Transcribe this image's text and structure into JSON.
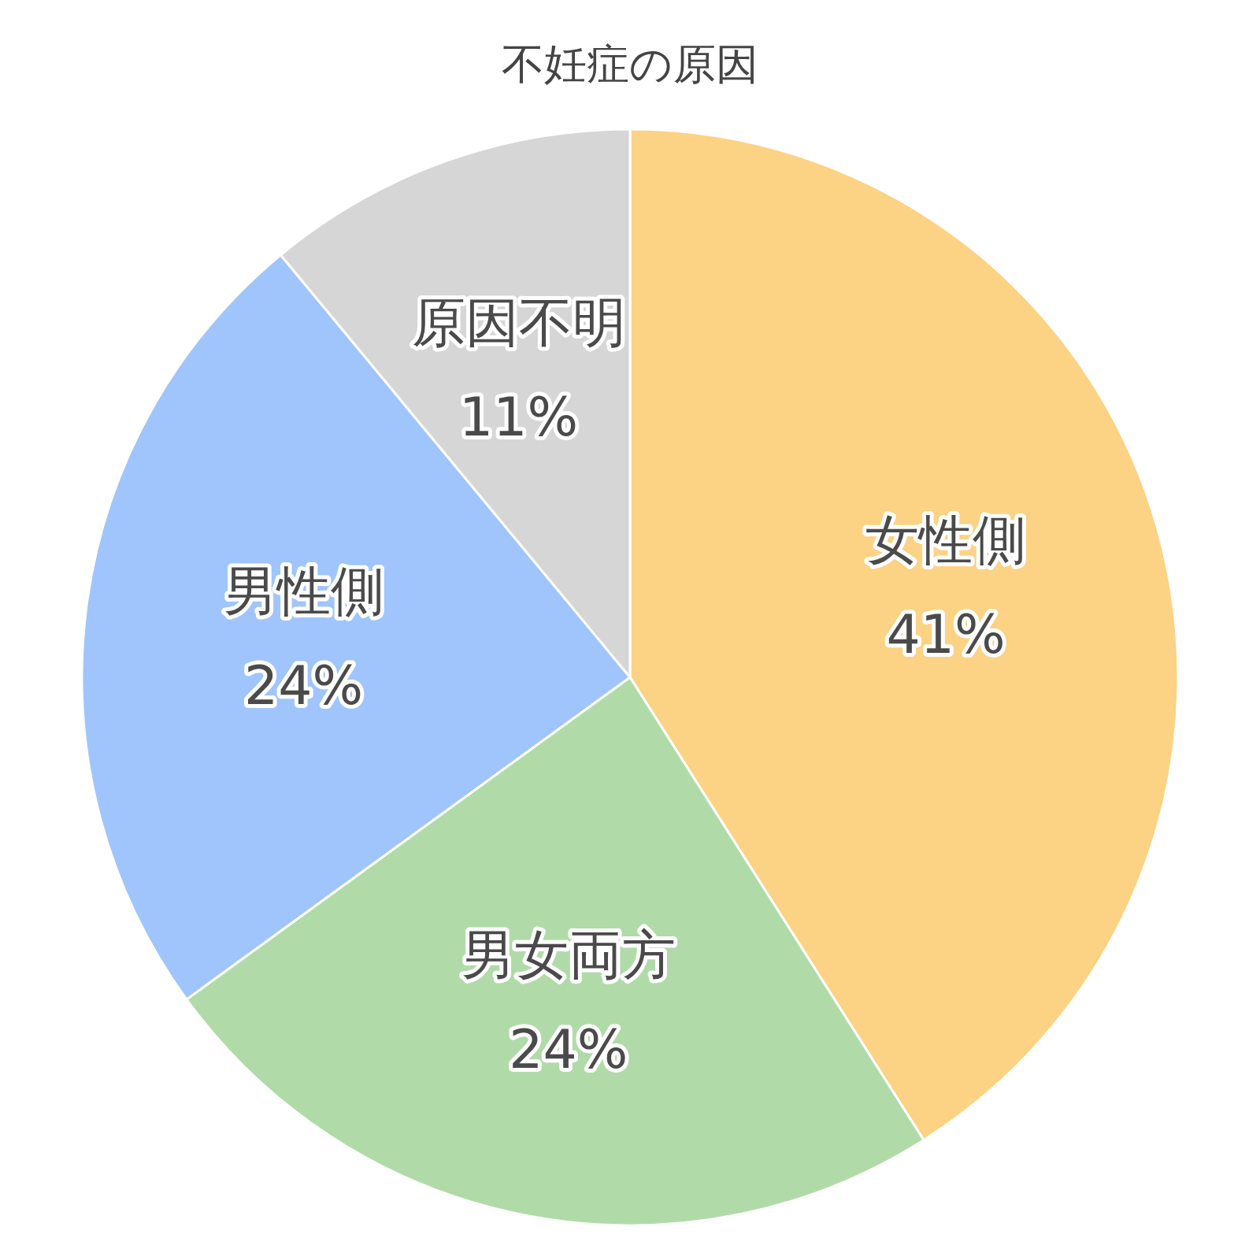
{
  "chart_data": {
    "type": "pie",
    "title": "不妊症の原因",
    "categories": [
      "女性側",
      "男女両方",
      "男性側",
      "原因不明"
    ],
    "values": [
      41,
      24,
      24,
      11
    ],
    "colors": [
      "#fcd285",
      "#b0dba8",
      "#9fc5fc",
      "#d6d6d6"
    ],
    "value_labels": [
      "41%",
      "24%",
      "24%",
      "11%"
    ]
  }
}
